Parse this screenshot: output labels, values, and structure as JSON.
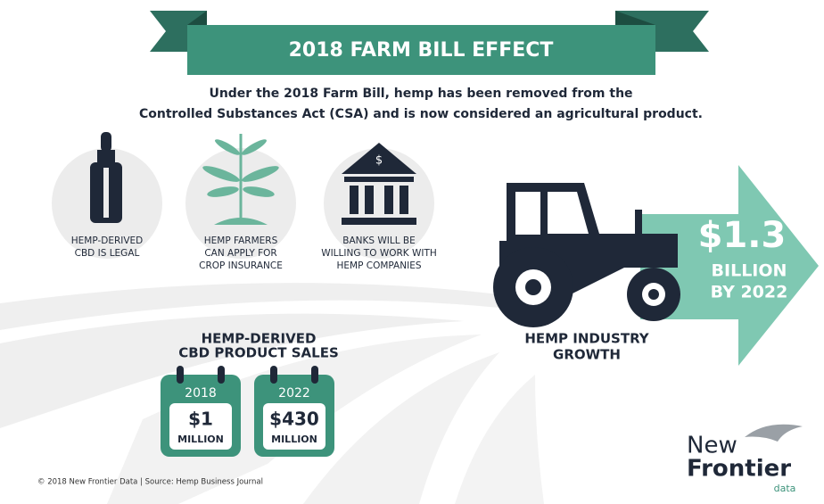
{
  "banner": {
    "title": "2018 FARM BILL EFFECT"
  },
  "intro": {
    "lines": [
      "Under the 2018 Farm Bill, hemp has been removed from the",
      "Controlled Substances Act (CSA) and is now considered an agricultural product."
    ]
  },
  "effects": [
    {
      "lines": [
        "HEMP-DERIVED",
        "CBD IS LEGAL"
      ]
    },
    {
      "lines": [
        "HEMP FARMERS",
        "CAN APPLY FOR",
        "CROP INSURANCE"
      ]
    },
    {
      "icon_symbol": "$",
      "lines": [
        "BANKS WILL BE",
        "WILLING TO WORK WITH",
        "HEMP COMPANIES"
      ]
    }
  ],
  "growth": {
    "amount": "$1.3",
    "unit": "BILLION",
    "by": "BY 2022",
    "label_lines": [
      "HEMP INDUSTRY",
      "GROWTH"
    ]
  },
  "cbd_sales": {
    "title_lines": [
      "HEMP-DERIVED",
      "CBD PRODUCT SALES"
    ],
    "calendars": [
      {
        "year": "2018",
        "amount": "$1",
        "unit": "MILLION"
      },
      {
        "year": "2022",
        "amount": "$430",
        "unit": "MILLION"
      }
    ]
  },
  "footer": "© 2018 New Frontier Data | Source: Hemp Business Journal",
  "logo": {
    "line1": "New",
    "line2": "Frontier",
    "line3": "data"
  }
}
